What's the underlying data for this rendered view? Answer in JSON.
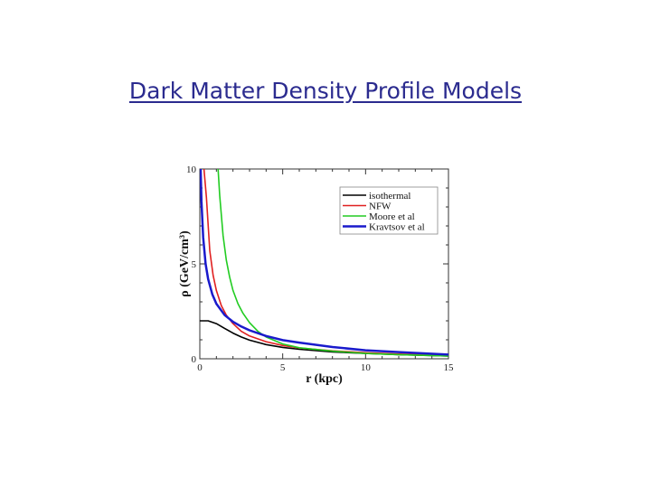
{
  "slide": {
    "title": "Dark Matter Density Profile Models",
    "title_color": "#2b2b8f"
  },
  "chart_data": {
    "type": "line",
    "xlabel": "r (kpc)",
    "ylabel": "ρ (GeV/cm³)",
    "xlim": [
      0,
      15
    ],
    "ylim": [
      0,
      10
    ],
    "x_ticks": [
      0,
      5,
      10,
      15
    ],
    "x_tick_labels": [
      "0",
      "5",
      "10",
      "15"
    ],
    "y_ticks": [
      0,
      5,
      10
    ],
    "y_tick_labels": [
      "0",
      "5",
      "10"
    ],
    "grid": false,
    "legend_position": "top-right",
    "series": [
      {
        "name": "isothermal",
        "color": "#000000",
        "x": [
          0,
          0.5,
          1,
          1.5,
          2,
          2.5,
          3,
          4,
          5,
          6,
          8,
          10,
          12,
          15
        ],
        "y": [
          2.0,
          2.0,
          1.85,
          1.6,
          1.35,
          1.15,
          0.98,
          0.75,
          0.6,
          0.5,
          0.36,
          0.28,
          0.22,
          0.15
        ]
      },
      {
        "name": "NFW",
        "color": "#e02020",
        "x": [
          0.25,
          0.4,
          0.6,
          0.8,
          1,
          1.3,
          1.6,
          2,
          2.5,
          3,
          4,
          5,
          6,
          8,
          10,
          12,
          15
        ],
        "y": [
          10.0,
          8.5,
          5.7,
          4.4,
          3.6,
          2.8,
          2.3,
          1.85,
          1.45,
          1.2,
          0.9,
          0.7,
          0.57,
          0.42,
          0.32,
          0.25,
          0.18
        ]
      },
      {
        "name": "Moore et al",
        "color": "#22cc22",
        "x": [
          1.1,
          1.2,
          1.4,
          1.6,
          1.8,
          2,
          2.3,
          2.6,
          3,
          3.5,
          4,
          5,
          6,
          8,
          10,
          12,
          15
        ],
        "y": [
          10.0,
          8.6,
          6.5,
          5.2,
          4.3,
          3.6,
          2.9,
          2.4,
          1.9,
          1.45,
          1.15,
          0.78,
          0.58,
          0.4,
          0.28,
          0.22,
          0.15
        ]
      },
      {
        "name": "Kravtsov et al",
        "color": "#1a1acc",
        "x": [
          0.05,
          0.1,
          0.2,
          0.35,
          0.5,
          0.75,
          1,
          1.5,
          2,
          2.5,
          3,
          4,
          5,
          6,
          8,
          10,
          12,
          15
        ],
        "y": [
          10.0,
          8.3,
          6.4,
          5.0,
          4.2,
          3.4,
          2.9,
          2.3,
          1.95,
          1.7,
          1.5,
          1.2,
          0.98,
          0.85,
          0.62,
          0.45,
          0.35,
          0.22
        ]
      }
    ]
  }
}
